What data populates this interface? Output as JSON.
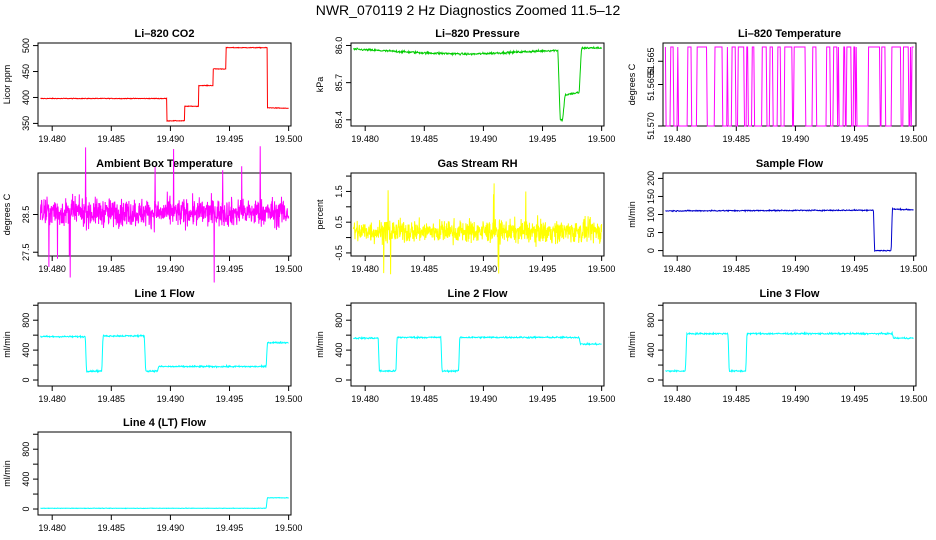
{
  "page_title": "NWR_070119  2 Hz Diagnostics Zoomed 11.5–12",
  "chart_data": [
    {
      "id": "co2",
      "type": "line",
      "title": "Li–820 CO2",
      "ylabel": "Licor ppm",
      "color": "#ff0000",
      "xlim": [
        19.4788,
        19.5002
      ],
      "ylim": [
        345,
        505
      ],
      "xticks": [
        "19.480",
        "19.485",
        "19.490",
        "19.495",
        "19.500"
      ],
      "yticks": [
        "350",
        "400",
        "450",
        "500"
      ],
      "noise": 0.6,
      "x": [
        19.479,
        19.4897,
        19.4897,
        19.4912,
        19.4912,
        19.4924,
        19.4924,
        19.4936,
        19.4936,
        19.4947,
        19.4947,
        19.4982,
        19.4982,
        19.4986,
        19.5
      ],
      "y": [
        398,
        398,
        355,
        355,
        383,
        383,
        423,
        423,
        455,
        455,
        496,
        496,
        380,
        380,
        379
      ]
    },
    {
      "id": "pressure",
      "type": "line",
      "title": "Li–820 Pressure",
      "ylabel": "kPa",
      "color": "#00cc00",
      "xlim": [
        19.4788,
        19.5002
      ],
      "ylim": [
        85.35,
        86.02
      ],
      "xticks": [
        "19.480",
        "19.485",
        "19.490",
        "19.495",
        "19.500"
      ],
      "yticks": [
        "85.4",
        "85.7",
        "86.0"
      ],
      "noise": 0.008,
      "x": [
        19.479,
        19.485,
        19.489,
        19.496,
        19.4963,
        19.4965,
        19.4967,
        19.4969,
        19.4981,
        19.4983,
        19.4985,
        19.5
      ],
      "y": [
        85.97,
        85.94,
        85.93,
        85.96,
        85.96,
        85.4,
        85.4,
        85.6,
        85.62,
        85.98,
        85.98,
        85.98
      ]
    },
    {
      "id": "licor-temp",
      "type": "line",
      "title": "Li–820 Temperature",
      "ylabel": "degrees C",
      "color": "#ff00ff",
      "xlim": [
        19.4788,
        19.5002
      ],
      "ylim": [
        51.5698,
        51.5615
      ],
      "xticks": [
        "19.480",
        "19.485",
        "19.490",
        "19.495",
        "19.500"
      ],
      "yticks": [
        "51.570",
        "51.565",
        "51.5655"
      ],
      "note": "signal switches between two digitized levels"
    },
    {
      "id": "box-temp",
      "type": "line",
      "title": "Ambient Box Temperature",
      "ylabel": "degrees C",
      "color": "#ff00ff",
      "xlim": [
        19.4788,
        19.5002
      ],
      "ylim": [
        27.4,
        29.6
      ],
      "xticks": [
        "19.480",
        "19.485",
        "19.490",
        "19.495",
        "19.500"
      ],
      "yticks": [
        "27.5",
        "28.5"
      ],
      "baseline": 28.55,
      "noise": 0.35
    },
    {
      "id": "rh",
      "type": "line",
      "title": "Gas Stream RH",
      "ylabel": "percent",
      "color": "#ffff00",
      "xlim": [
        19.4788,
        19.5002
      ],
      "ylim": [
        -0.6,
        2.1
      ],
      "xticks": [
        "19.480",
        "19.485",
        "19.490",
        "19.495",
        "19.500"
      ],
      "yticks": [
        "-0.5",
        "0.5",
        "1.5"
      ],
      "yticks_minor": [
        "0.0",
        "1.0",
        "2.0"
      ],
      "baseline": 0.2,
      "noise": 0.35
    },
    {
      "id": "sample-flow",
      "type": "line",
      "title": "Sample Flow",
      "ylabel": "ml/min",
      "color": "#0000cc",
      "xlim": [
        19.4788,
        19.5002
      ],
      "ylim": [
        -15,
        215
      ],
      "xticks": [
        "19.480",
        "19.485",
        "19.490",
        "19.495",
        "19.500"
      ],
      "yticks": [
        "0",
        "50",
        "100",
        "150",
        "200"
      ],
      "noise": 1.5,
      "x": [
        19.479,
        19.4966,
        19.4967,
        19.498,
        19.4981,
        19.4982,
        19.5
      ],
      "y": [
        110,
        112,
        0,
        0,
        0,
        115,
        113
      ]
    },
    {
      "id": "line1",
      "type": "line",
      "title": "Line 1 Flow",
      "ylabel": "ml/min",
      "color": "#00ffff",
      "xlim": [
        19.4788,
        19.5002
      ],
      "ylim": [
        -80,
        1030
      ],
      "xticks": [
        "19.480",
        "19.485",
        "19.490",
        "19.495",
        "19.500"
      ],
      "yticks": [
        "0",
        "400",
        "800"
      ],
      "yticks_minor": [
        "200",
        "600",
        "1000"
      ],
      "noise": 10,
      "x": [
        19.479,
        19.4828,
        19.4829,
        19.4842,
        19.4843,
        19.4878,
        19.4879,
        19.4889,
        19.489,
        19.4981,
        19.4982,
        19.5
      ],
      "y": [
        580,
        580,
        120,
        120,
        590,
        590,
        120,
        120,
        180,
        180,
        500,
        500
      ]
    },
    {
      "id": "line2",
      "type": "line",
      "title": "Line 2 Flow",
      "ylabel": "ml/min",
      "color": "#00ffff",
      "xlim": [
        19.4788,
        19.5002
      ],
      "ylim": [
        -80,
        1030
      ],
      "xticks": [
        "19.480",
        "19.485",
        "19.490",
        "19.495",
        "19.500"
      ],
      "yticks": [
        "0",
        "400",
        "800"
      ],
      "yticks_minor": [
        "200",
        "600",
        "1000"
      ],
      "noise": 10,
      "x": [
        19.479,
        19.4811,
        19.4812,
        19.4826,
        19.4827,
        19.4864,
        19.4865,
        19.4879,
        19.488,
        19.4981,
        19.4982,
        19.5
      ],
      "y": [
        560,
        560,
        120,
        120,
        570,
        570,
        120,
        120,
        570,
        570,
        480,
        480
      ]
    },
    {
      "id": "line3",
      "type": "line",
      "title": "Line 3 Flow",
      "ylabel": "ml/min",
      "color": "#00ffff",
      "xlim": [
        19.4788,
        19.5002
      ],
      "ylim": [
        -80,
        1030
      ],
      "xticks": [
        "19.480",
        "19.485",
        "19.490",
        "19.495",
        "19.500"
      ],
      "yticks": [
        "0",
        "400",
        "800"
      ],
      "yticks_minor": [
        "200",
        "600",
        "1000"
      ],
      "noise": 10,
      "x": [
        19.479,
        19.4807,
        19.4808,
        19.4843,
        19.4844,
        19.4858,
        19.4859,
        19.4982,
        19.4983,
        19.5
      ],
      "y": [
        120,
        120,
        620,
        620,
        120,
        120,
        620,
        620,
        560,
        560
      ]
    },
    {
      "id": "line4",
      "type": "line",
      "title": "Line 4 (LT) Flow",
      "ylabel": "ml/min",
      "color": "#00ffff",
      "xlim": [
        19.4788,
        19.5002
      ],
      "ylim": [
        -80,
        1030
      ],
      "xticks": [
        "19.480",
        "19.485",
        "19.490",
        "19.495",
        "19.500"
      ],
      "yticks": [
        "0",
        "400",
        "800"
      ],
      "yticks_minor": [
        "200",
        "600",
        "1000"
      ],
      "noise": 3,
      "x": [
        19.479,
        19.4981,
        19.4982,
        19.5
      ],
      "y": [
        10,
        10,
        150,
        150
      ]
    }
  ]
}
